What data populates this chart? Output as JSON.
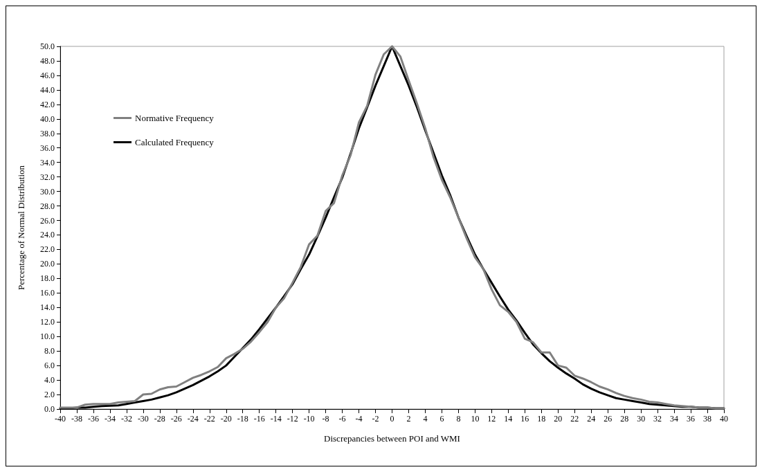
{
  "chart_data": {
    "type": "line",
    "xlabel": "Discrepancies between POI and WMI",
    "ylabel": "Percentage of Normal Distribution",
    "x": [
      -40,
      -39,
      -38,
      -37,
      -36,
      -35,
      -34,
      -33,
      -32,
      -31,
      -30,
      -29,
      -28,
      -27,
      -26,
      -25,
      -24,
      -23,
      -22,
      -21,
      -20,
      -19,
      -18,
      -17,
      -16,
      -15,
      -14,
      -13,
      -12,
      -11,
      -10,
      -9,
      -8,
      -7,
      -6,
      -5,
      -4,
      -3,
      -2,
      -1,
      0,
      1,
      2,
      3,
      4,
      5,
      6,
      7,
      8,
      9,
      10,
      11,
      12,
      13,
      14,
      15,
      16,
      17,
      18,
      19,
      20,
      21,
      22,
      23,
      24,
      25,
      26,
      27,
      28,
      29,
      30,
      31,
      32,
      33,
      34,
      35,
      36,
      37,
      38,
      39,
      40
    ],
    "series": [
      {
        "name": "Normative Frequency",
        "color": "#808080",
        "values": [
          0.2,
          0.2,
          0.2,
          0.6,
          0.7,
          0.7,
          0.7,
          0.9,
          1.0,
          1.1,
          2.0,
          2.1,
          2.7,
          3.0,
          3.1,
          3.7,
          4.3,
          4.7,
          5.2,
          5.8,
          7.0,
          7.6,
          8.3,
          9.3,
          10.6,
          12.0,
          14.0,
          15.3,
          17.4,
          19.6,
          22.7,
          23.9,
          27.3,
          28.4,
          32.2,
          35.0,
          39.5,
          41.8,
          46.1,
          48.9,
          50.0,
          48.6,
          45.3,
          42.1,
          38.7,
          34.7,
          31.6,
          29.2,
          26.4,
          23.5,
          20.9,
          19.3,
          16.5,
          14.3,
          13.4,
          12.0,
          9.7,
          9.2,
          7.8,
          7.8,
          6.0,
          5.7,
          4.6,
          4.2,
          3.7,
          3.1,
          2.7,
          2.2,
          1.8,
          1.5,
          1.3,
          1.0,
          0.9,
          0.7,
          0.5,
          0.4,
          0.3,
          0.2,
          0.2,
          0.1,
          0.1
        ]
      },
      {
        "name": "Calculated Frequency",
        "color": "#000000",
        "values": [
          0.1,
          0.1,
          0.2,
          0.2,
          0.3,
          0.4,
          0.45,
          0.5,
          0.7,
          0.9,
          1.1,
          1.3,
          1.6,
          1.9,
          2.3,
          2.8,
          3.3,
          3.9,
          4.5,
          5.2,
          6.0,
          7.2,
          8.4,
          9.6,
          11.0,
          12.5,
          14.0,
          15.6,
          17.2,
          19.3,
          21.3,
          23.8,
          26.4,
          29.2,
          31.9,
          35.2,
          38.7,
          41.6,
          44.6,
          47.3,
          50.0,
          47.3,
          44.6,
          41.6,
          38.4,
          35.3,
          32.2,
          29.5,
          26.4,
          23.8,
          21.3,
          19.3,
          17.4,
          15.5,
          13.7,
          12.2,
          10.5,
          8.9,
          7.7,
          6.6,
          5.7,
          4.9,
          4.2,
          3.4,
          2.8,
          2.3,
          1.9,
          1.5,
          1.3,
          1.1,
          0.9,
          0.7,
          0.6,
          0.5,
          0.4,
          0.3,
          0.3,
          0.2,
          0.2,
          0.1,
          0.1
        ]
      }
    ],
    "xlim": [
      -40,
      40
    ],
    "xticks": [
      -40,
      -38,
      -36,
      -34,
      -32,
      -30,
      -28,
      -26,
      -24,
      -22,
      -20,
      -18,
      -16,
      -14,
      -12,
      -10,
      -8,
      -6,
      -4,
      -2,
      0,
      2,
      4,
      6,
      8,
      10,
      12,
      14,
      16,
      18,
      20,
      22,
      24,
      26,
      28,
      30,
      32,
      34,
      36,
      38,
      40
    ],
    "ylim": [
      0,
      50
    ],
    "yticks": [
      {
        "value": 0,
        "label": "0.0"
      },
      {
        "value": 2,
        "label": "2.0"
      },
      {
        "value": 4,
        "label": "4.0"
      },
      {
        "value": 6,
        "label": "6.0"
      },
      {
        "value": 8,
        "label": "8.0"
      },
      {
        "value": 10,
        "label": "10.0"
      },
      {
        "value": 12,
        "label": "12.0"
      },
      {
        "value": 14,
        "label": "14.0"
      },
      {
        "value": 16,
        "label": "16.0"
      },
      {
        "value": 18,
        "label": "18.0"
      },
      {
        "value": 20,
        "label": "20.0"
      },
      {
        "value": 22,
        "label": "22.0"
      },
      {
        "value": 24,
        "label": "24.0"
      },
      {
        "value": 26,
        "label": "26.0"
      },
      {
        "value": 28,
        "label": "28.0"
      },
      {
        "value": 30,
        "label": "30.0"
      },
      {
        "value": 32,
        "label": "32.0"
      },
      {
        "value": 34,
        "label": "34.0"
      },
      {
        "value": 36,
        "label": "36.0"
      },
      {
        "value": 38,
        "label": "38.0"
      },
      {
        "value": 40,
        "label": "40.0"
      },
      {
        "value": 42,
        "label": "42.0"
      },
      {
        "value": 44,
        "label": "44.0"
      },
      {
        "value": 46,
        "label": "46.0"
      },
      {
        "value": 48,
        "label": "48.0"
      },
      {
        "value": 50,
        "label": "50.0"
      }
    ],
    "grid": false,
    "legend": "top left",
    "marker": "none",
    "line_style": "solid"
  }
}
